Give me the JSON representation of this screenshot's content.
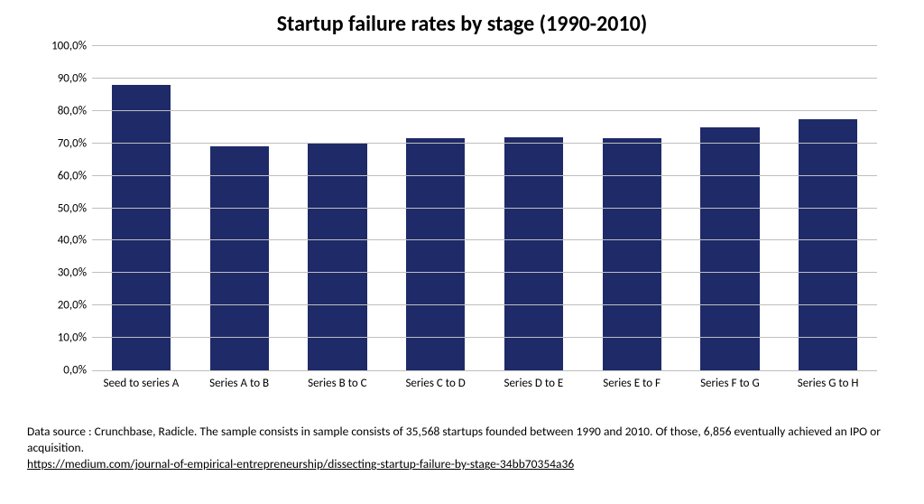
{
  "chart": {
    "type": "bar",
    "title": "Startup failure rates by stage (1990-2010)",
    "title_fontsize": 24,
    "title_fontweight": 700,
    "categories": [
      "Seed to series A",
      "Series A to B",
      "Series B to C",
      "Series C to D",
      "Series D to E",
      "Series E to F",
      "Series F to G",
      "Series G to H"
    ],
    "values": [
      88.0,
      69.0,
      70.0,
      71.5,
      72.0,
      71.5,
      75.0,
      77.5
    ],
    "bar_color": "#1f2a69",
    "bar_width_pct": 60,
    "ylim": [
      0,
      100
    ],
    "ytick_step": 10,
    "ytick_labels": [
      "0,0%",
      "10,0%",
      "20,0%",
      "30,0%",
      "40,0%",
      "50,0%",
      "60,0%",
      "70,0%",
      "80,0%",
      "90,0%",
      "100,0%"
    ],
    "label_fontsize": 13,
    "background_color": "#ffffff",
    "grid_color": "#bfbfbf",
    "axis_color": "#bfbfbf"
  },
  "footer": {
    "text": "Data source : Crunchbase, Radicle. The sample consists in sample consists of 35,568 startups founded between 1990 and 2010. Of those, 6,856 eventually achieved an IPO or acquisition.",
    "link_text": "https://medium.com/journal-of-empirical-entrepreneurship/dissecting-startup-failure-by-stage-34bb70354a36",
    "fontsize": 13.5
  }
}
